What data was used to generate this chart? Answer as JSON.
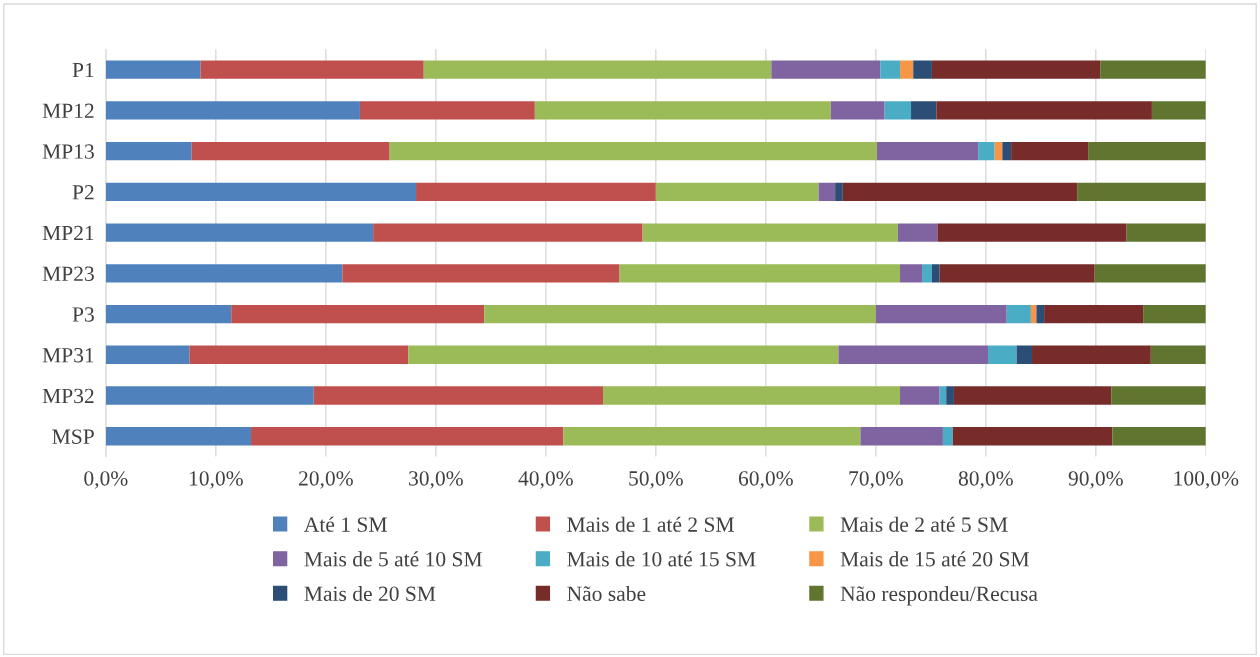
{
  "chart_data": {
    "type": "bar",
    "orientation": "horizontal",
    "stacked": true,
    "categories": [
      "P1",
      "MP12",
      "MP13",
      "P2",
      "MP21",
      "MP23",
      "P3",
      "MP31",
      "MP32",
      "MSP"
    ],
    "series": [
      {
        "name": "Até 1 SM",
        "color": "#4f81bd",
        "values": [
          8.6,
          23.1,
          7.8,
          28.2,
          24.3,
          21.5,
          11.4,
          7.6,
          18.9,
          13.2
        ]
      },
      {
        "name": "Mais de 1 até 2 SM",
        "color": "#c0504d",
        "values": [
          20.3,
          15.9,
          18.0,
          21.8,
          24.5,
          25.2,
          23.0,
          19.9,
          26.3,
          28.4
        ]
      },
      {
        "name": "Mais de 2 até 5 SM",
        "color": "#9bbb59",
        "values": [
          31.6,
          26.9,
          44.3,
          14.8,
          23.2,
          25.5,
          35.6,
          39.1,
          27.0,
          27.0
        ]
      },
      {
        "name": "Mais de 5 até 10 SM",
        "color": "#8064a2",
        "values": [
          9.9,
          4.9,
          9.2,
          1.5,
          3.6,
          2.0,
          11.9,
          13.6,
          3.6,
          7.5
        ]
      },
      {
        "name": "Mais de 10 até 15 SM",
        "color": "#4bacc6",
        "values": [
          1.8,
          2.4,
          1.5,
          0,
          0,
          0.9,
          2.2,
          2.6,
          0.6,
          0.9
        ]
      },
      {
        "name": "Mais de 15 até 20 SM",
        "color": "#f79646",
        "values": [
          1.2,
          0,
          0.7,
          0,
          0,
          0,
          0.5,
          0,
          0,
          0
        ]
      },
      {
        "name": "Mais de 20 SM",
        "color": "#2c4d75",
        "values": [
          1.7,
          2.3,
          0.8,
          0.7,
          0,
          0.7,
          0.7,
          1.4,
          0.7,
          0
        ]
      },
      {
        "name": "Não sabe",
        "color": "#772c2a",
        "values": [
          15.3,
          19.6,
          7.0,
          21.3,
          17.2,
          14.1,
          9.0,
          10.8,
          14.3,
          14.5
        ]
      },
      {
        "name": "Não respondeu/Recusa",
        "color": "#5f7530",
        "values": [
          9.6,
          4.9,
          10.7,
          11.7,
          7.2,
          10.1,
          5.7,
          5.0,
          8.6,
          8.5
        ]
      }
    ],
    "xlim": [
      0,
      100
    ],
    "xticks": [
      {
        "value": 0,
        "label": "0,0%"
      },
      {
        "value": 10,
        "label": "10,0%"
      },
      {
        "value": 20,
        "label": "20,0%"
      },
      {
        "value": 30,
        "label": "30,0%"
      },
      {
        "value": 40,
        "label": "40,0%"
      },
      {
        "value": 50,
        "label": "50,0%"
      },
      {
        "value": 60,
        "label": "60,0%"
      },
      {
        "value": 70,
        "label": "70,0%"
      },
      {
        "value": 80,
        "label": "80,0%"
      },
      {
        "value": 90,
        "label": "90,0%"
      },
      {
        "value": 100,
        "label": "100,0%"
      }
    ],
    "grid": "x",
    "legend": "bottom"
  }
}
